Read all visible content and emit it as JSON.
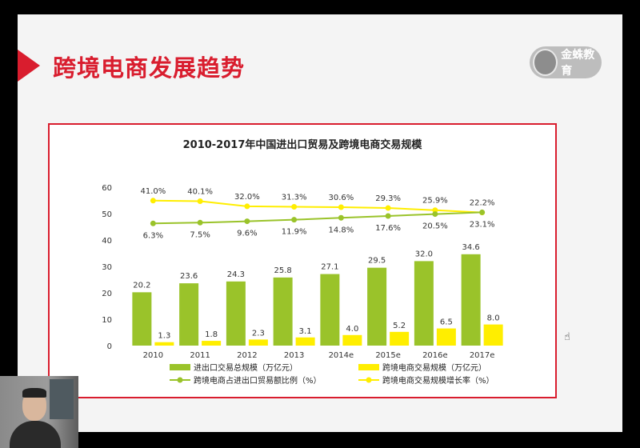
{
  "slide": {
    "title": "跨境电商发展趋势",
    "logo_text": "金蛛教育",
    "accent_color": "#d91d2e"
  },
  "chart_data": {
    "type": "bar",
    "title": "2010-2017年中国进出口贸易及跨境电商交易规模",
    "categories": [
      "2010",
      "2011",
      "2012",
      "2013",
      "2014e",
      "2015e",
      "2016e",
      "2017e"
    ],
    "ylim": [
      0,
      60
    ],
    "yticks": [
      0,
      10,
      20,
      30,
      40,
      50,
      60
    ],
    "grid": false,
    "legend_position": "bottom",
    "series": [
      {
        "name": "进出口交易总规模（万亿元）",
        "kind": "bar",
        "color": "#9ac32a",
        "values": [
          20.2,
          23.6,
          24.3,
          25.8,
          27.1,
          29.5,
          32.0,
          34.6
        ]
      },
      {
        "name": "跨境电商交易规模（万亿元）",
        "kind": "bar",
        "color": "#ffee00",
        "values": [
          1.3,
          1.8,
          2.3,
          3.1,
          4.0,
          5.2,
          6.5,
          8.0
        ]
      },
      {
        "name": "跨境电商占进出口贸易额比例（%）",
        "kind": "line",
        "color": "#9ac32a",
        "values": [
          6.3,
          7.5,
          9.6,
          11.9,
          14.8,
          17.6,
          20.5,
          23.1
        ],
        "labels": [
          "6.3%",
          "7.5%",
          "9.6%",
          "11.9%",
          "14.8%",
          "17.6%",
          "20.5%",
          "23.1%"
        ]
      },
      {
        "name": "跨境电商交易规模增长率（%）",
        "kind": "line",
        "color": "#ffee00",
        "values": [
          41.0,
          40.1,
          32.0,
          31.3,
          30.6,
          29.3,
          25.9,
          22.2
        ],
        "labels": [
          "41.0%",
          "40.1%",
          "32.0%",
          "31.3%",
          "30.6%",
          "29.3%",
          "25.9%",
          "22.2%"
        ]
      }
    ]
  }
}
